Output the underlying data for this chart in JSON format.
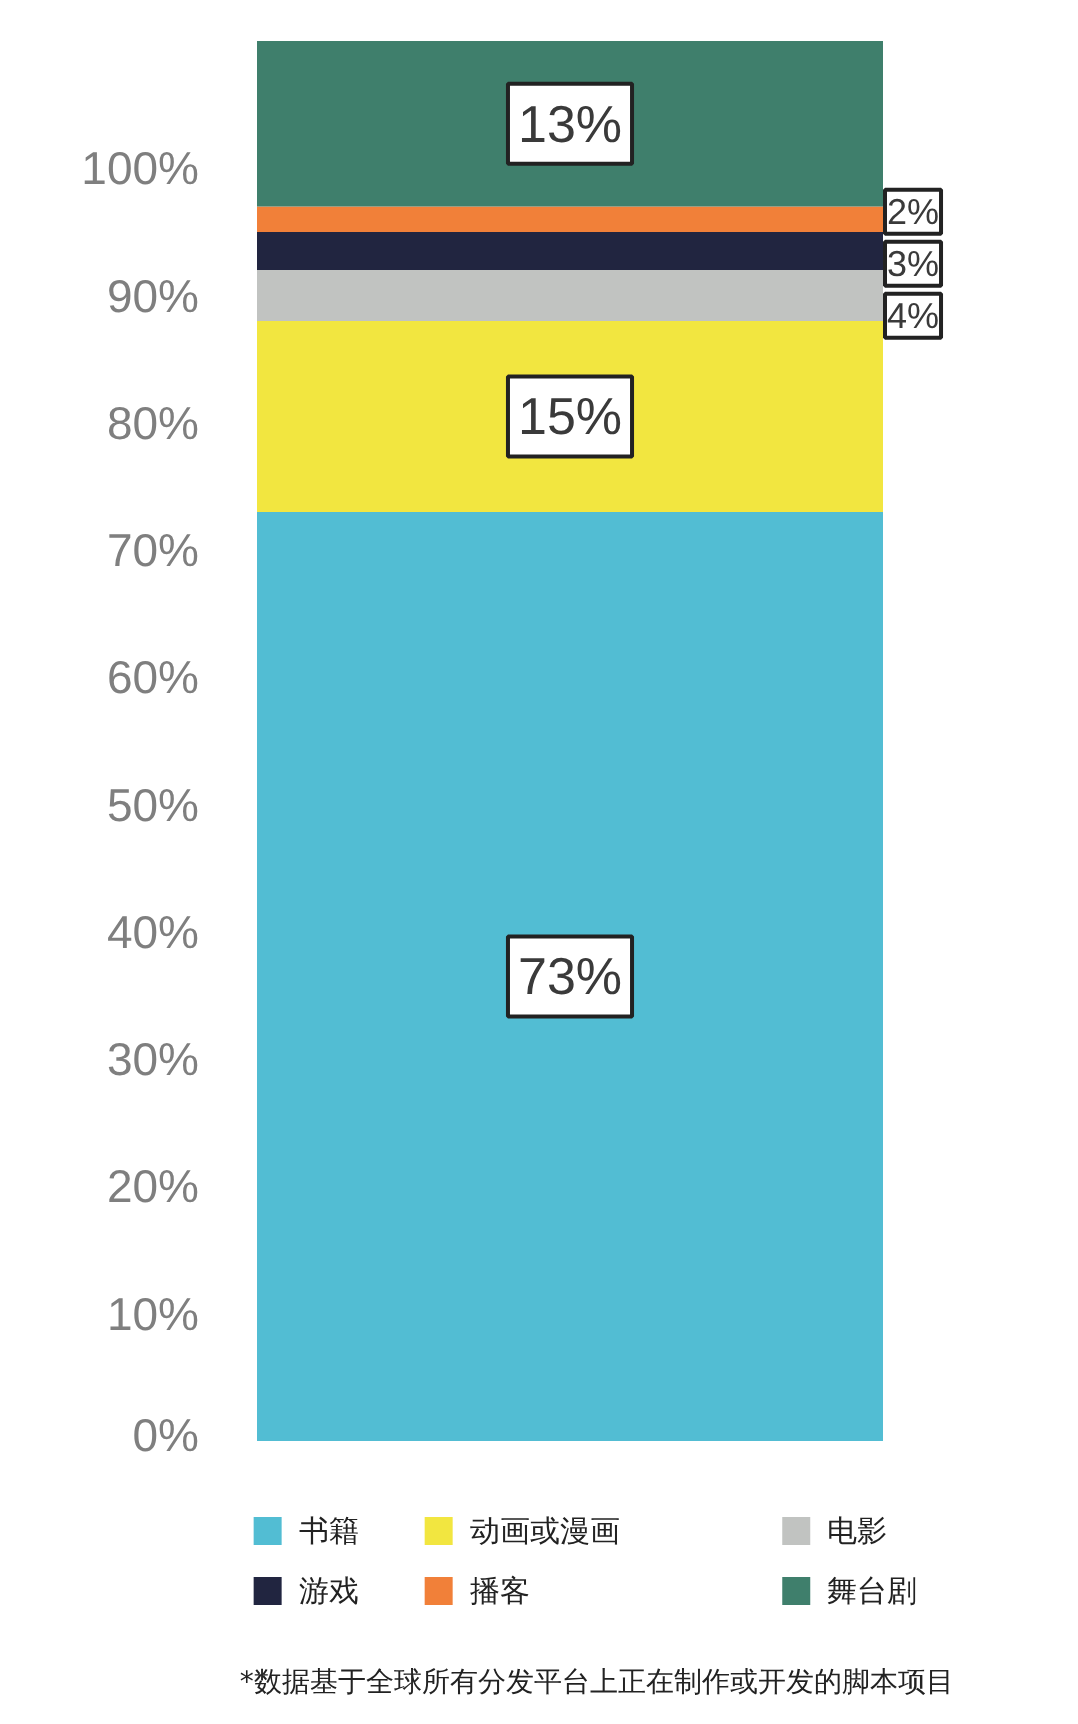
{
  "chart_data": {
    "type": "bar",
    "stacked": true,
    "categories": [
      null
    ],
    "series": [
      {
        "name": "书籍",
        "color": "#52bdd3",
        "values": [
          73
        ],
        "value_labels": [
          "73%"
        ]
      },
      {
        "name": "动画或漫画",
        "color": "#f2e640",
        "values": [
          15
        ],
        "value_labels": [
          "15%"
        ]
      },
      {
        "name": "电影",
        "color": "#c1c3c1",
        "values": [
          4
        ],
        "value_labels": [
          "4%"
        ]
      },
      {
        "name": "游戏",
        "color": "#212540",
        "values": [
          3
        ],
        "value_labels": [
          "3%"
        ]
      },
      {
        "name": "播客",
        "color": "#f18039",
        "values": [
          2
        ],
        "value_labels": [
          "2%"
        ]
      },
      {
        "name": "舞台剧",
        "color": "#3f7f6c",
        "values": [
          13
        ],
        "value_labels": [
          "13%"
        ]
      }
    ],
    "ylim": [
      0,
      110
    ],
    "yticks": [
      {
        "value": 0,
        "label": "0%"
      },
      {
        "value": 10,
        "label": "10%"
      },
      {
        "value": 20,
        "label": "20%"
      },
      {
        "value": 30,
        "label": "30%"
      },
      {
        "value": 40,
        "label": "40%"
      },
      {
        "value": 50,
        "label": "50%"
      },
      {
        "value": 60,
        "label": "60%"
      },
      {
        "value": 70,
        "label": "70%"
      },
      {
        "value": 80,
        "label": "80%"
      },
      {
        "value": 90,
        "label": "90%"
      },
      {
        "value": 100,
        "label": "100%"
      }
    ],
    "grid": false,
    "legend": "bottom",
    "annotations": [
      "*数据基于全球所有分发平台上正在制作或开发的脚本项目"
    ]
  }
}
